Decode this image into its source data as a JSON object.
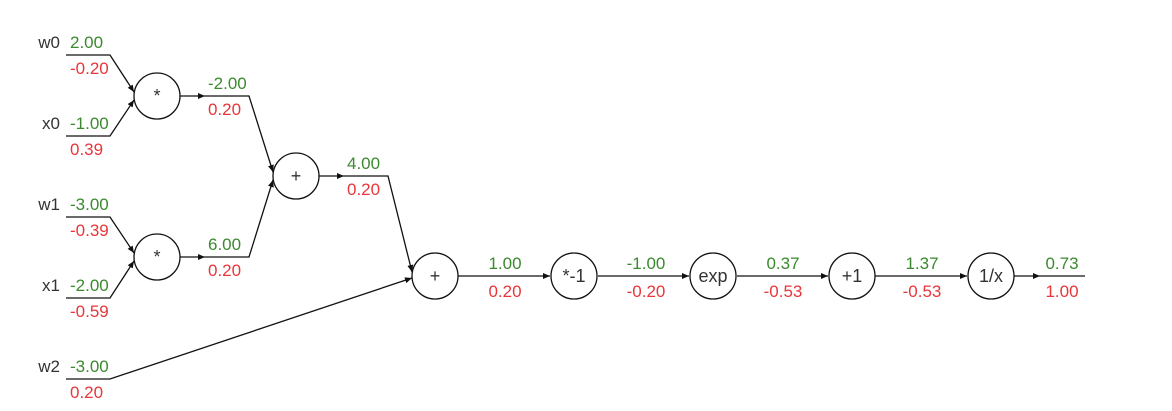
{
  "inputs": {
    "w0": {
      "name": "w0",
      "value": "2.00",
      "grad": "-0.20"
    },
    "x0": {
      "name": "x0",
      "value": "-1.00",
      "grad": "0.39"
    },
    "w1": {
      "name": "w1",
      "value": "-3.00",
      "grad": "-0.39"
    },
    "x1": {
      "name": "x1",
      "value": "-2.00",
      "grad": "-0.59"
    },
    "w2": {
      "name": "w2",
      "value": "-3.00",
      "grad": "0.20"
    }
  },
  "nodes": {
    "mul0": {
      "op": "*",
      "value": "-2.00",
      "grad": "0.20"
    },
    "mul1": {
      "op": "*",
      "value": "6.00",
      "grad": "0.20"
    },
    "add0": {
      "op": "+",
      "value": "4.00",
      "grad": "0.20"
    },
    "add1": {
      "op": "+",
      "value": "1.00",
      "grad": "0.20"
    },
    "neg": {
      "op": "*-1",
      "value": "-1.00",
      "grad": "-0.20"
    },
    "exp": {
      "op": "exp",
      "value": "0.37",
      "grad": "-0.53"
    },
    "plus1": {
      "op": "+1",
      "value": "1.37",
      "grad": "-0.53"
    },
    "inv": {
      "op": "1/x",
      "value": "0.73",
      "grad": "1.00"
    }
  },
  "colors": {
    "forward": "#3a8a2e",
    "backward": "#e8363a",
    "line": "#111111",
    "text": "#333333"
  }
}
